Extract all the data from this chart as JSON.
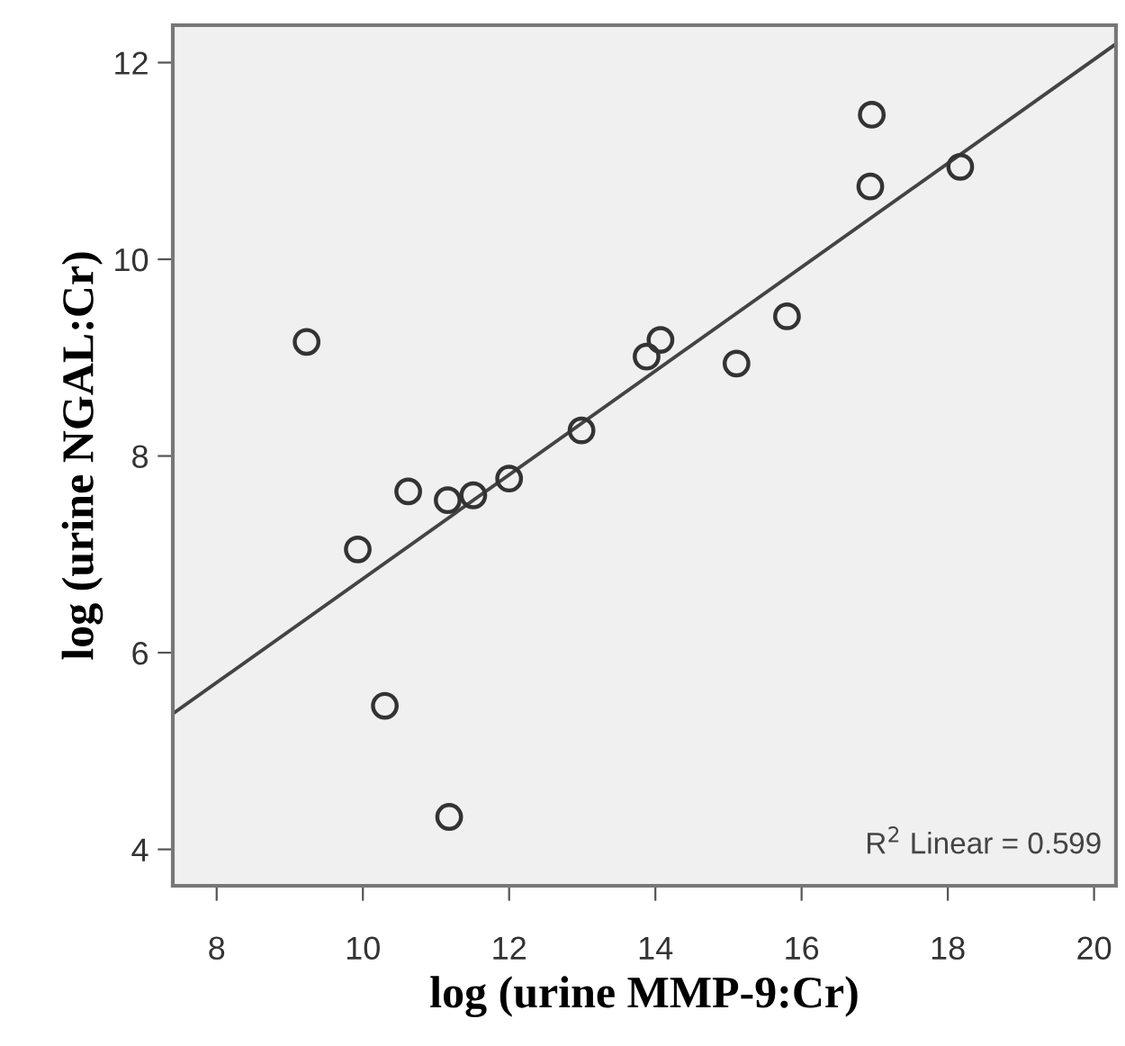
{
  "chart_data": {
    "type": "scatter",
    "xlabel": "log (urine MMP-9:Cr)",
    "ylabel": "log (urine NGAL:Cr)",
    "xlim": [
      7.4,
      20.3
    ],
    "ylim": [
      3.63,
      12.38
    ],
    "xticks": [
      8,
      10,
      12,
      14,
      16,
      18,
      20
    ],
    "yticks": [
      4,
      6,
      8,
      10,
      12
    ],
    "grid": false,
    "series": [
      {
        "marker": "circle",
        "color": "#333333",
        "x": [
          9.23,
          9.93,
          10.62,
          10.3,
          11.16,
          11.51,
          12.0,
          12.99,
          13.88,
          14.07,
          11.18,
          15.11,
          15.8,
          16.94,
          16.96,
          18.17
        ],
        "values": [
          9.16,
          7.05,
          7.64,
          5.46,
          7.55,
          7.6,
          7.77,
          8.26,
          9.01,
          9.18,
          4.33,
          8.94,
          9.42,
          10.74,
          11.47,
          10.94
        ]
      },
      {
        "type": "line",
        "color": "#444444",
        "x": [
          7.4,
          20.3
        ],
        "values": [
          5.38,
          12.19
        ]
      }
    ],
    "annotations": [
      "R$^{2}$ Linear = 0.599"
    ]
  }
}
